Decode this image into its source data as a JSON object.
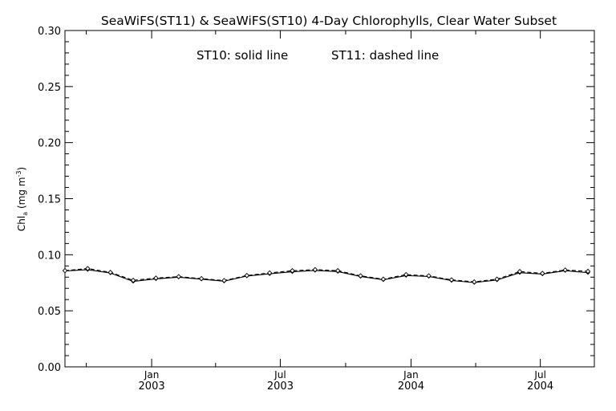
{
  "chart_data": {
    "type": "line",
    "title": "SeaWiFS(ST11) & SeaWiFS(ST10) 4-Day Chlorophylls, Clear Water Subset",
    "annotation_left": "ST10: solid line",
    "annotation_right": "ST11: dashed line",
    "ylabel": "Chl",
    "ylabel_sub": "a",
    "ylabel_units_open": "(mg m",
    "ylabel_units_sup": "-3",
    "ylabel_units_close": ")",
    "ylim": [
      0.0,
      0.3
    ],
    "yticks": [
      "0.00",
      "0.05",
      "0.10",
      "0.15",
      "0.20",
      "0.25",
      "0.30"
    ],
    "xlim": [
      "2002-09-01",
      "2004-09-15"
    ],
    "xticks_major": [
      {
        "month": "Jan",
        "year": "2003"
      },
      {
        "month": "Jul",
        "year": "2003"
      },
      {
        "month": "Jan",
        "year": "2004"
      },
      {
        "month": "Jul",
        "year": "2004"
      }
    ],
    "grid": false,
    "x": [
      "2002-09-01",
      "2002-10-03",
      "2002-11-04",
      "2002-12-06",
      "2003-01-07",
      "2003-02-08",
      "2003-03-12",
      "2003-04-13",
      "2003-05-15",
      "2003-06-16",
      "2003-07-18",
      "2003-08-19",
      "2003-09-20",
      "2003-10-22",
      "2003-11-23",
      "2003-12-25",
      "2004-01-26",
      "2004-02-27",
      "2004-03-30",
      "2004-05-01",
      "2004-06-02",
      "2004-07-04",
      "2004-08-05",
      "2004-09-06"
    ],
    "series": [
      {
        "name": "ST10",
        "style": "solid",
        "values": [
          0.0855,
          0.0867,
          0.0837,
          0.0762,
          0.0785,
          0.08,
          0.0782,
          0.0764,
          0.081,
          0.083,
          0.0848,
          0.086,
          0.085,
          0.0806,
          0.0776,
          0.0814,
          0.0806,
          0.077,
          0.0752,
          0.0775,
          0.084,
          0.0828,
          0.0858,
          0.084
        ]
      },
      {
        "name": "ST11",
        "style": "dashed",
        "values": [
          0.0858,
          0.0877,
          0.0843,
          0.0772,
          0.0792,
          0.0805,
          0.0787,
          0.077,
          0.0815,
          0.0838,
          0.0858,
          0.0867,
          0.0858,
          0.0812,
          0.0782,
          0.0823,
          0.0812,
          0.0776,
          0.0758,
          0.0782,
          0.085,
          0.0834,
          0.0864,
          0.0852
        ]
      }
    ]
  }
}
